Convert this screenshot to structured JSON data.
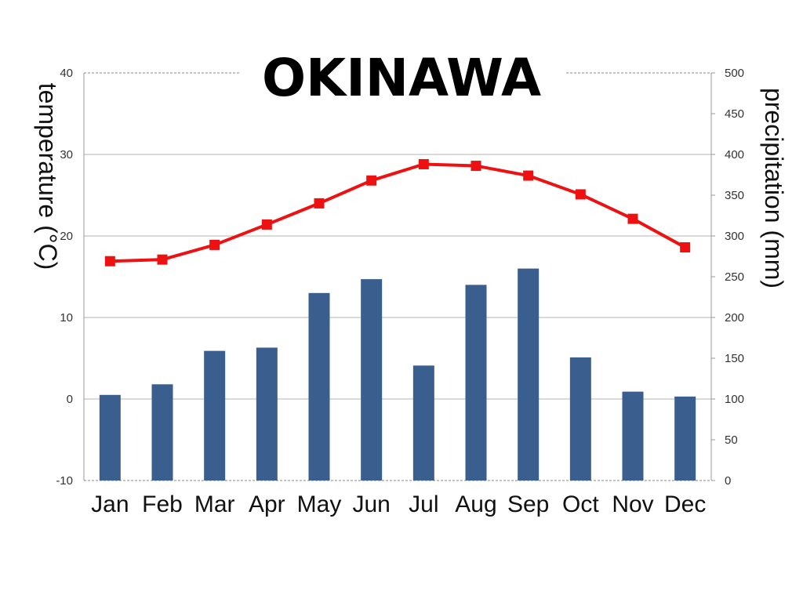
{
  "chart_data": {
    "type": "bar",
    "title": "OKINAWA",
    "categories": [
      "Jan",
      "Feb",
      "Mar",
      "Apr",
      "May",
      "Jun",
      "Jul",
      "Aug",
      "Sep",
      "Oct",
      "Nov",
      "Dec"
    ],
    "ylabel_left": "temperature (°C)",
    "ylabel_right": "precipitation (mm)",
    "ylim_left": [
      -10,
      40
    ],
    "ylim_right": [
      0,
      500
    ],
    "yticks_left": [
      -10,
      0,
      10,
      20,
      30,
      40
    ],
    "yticks_right": [
      0,
      50,
      100,
      150,
      200,
      250,
      300,
      350,
      400,
      450,
      500
    ],
    "grid": true,
    "legend": "none",
    "series": [
      {
        "type": "bar",
        "axis": "right",
        "color": "#3a5f8f",
        "values": [
          105,
          118,
          159,
          163,
          230,
          247,
          141,
          240,
          260,
          151,
          109,
          103
        ]
      },
      {
        "type": "line",
        "axis": "left",
        "color": "#ee1111",
        "marker": "square",
        "values": [
          16.9,
          17.1,
          18.9,
          21.4,
          24.0,
          26.8,
          28.8,
          28.6,
          27.4,
          25.1,
          22.1,
          18.6
        ]
      }
    ]
  }
}
